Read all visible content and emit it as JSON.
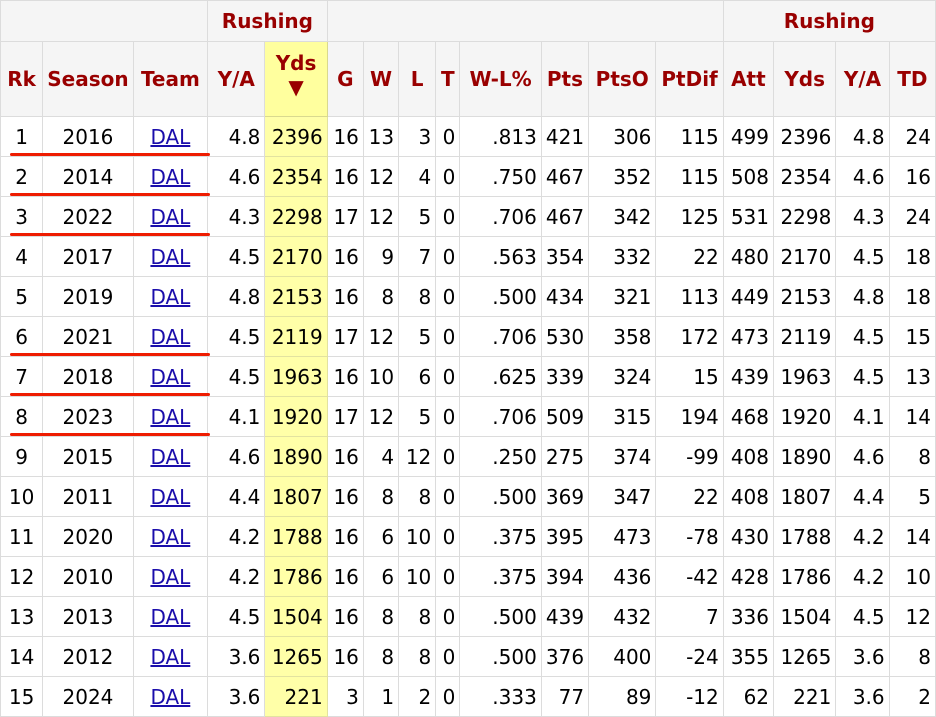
{
  "over_header": {
    "left": "Rushing",
    "right": "Rushing"
  },
  "headers": [
    "Rk",
    "Season",
    "Team",
    "Y/A",
    "Yds",
    "G",
    "W",
    "L",
    "T",
    "W-L%",
    "Pts",
    "PtsO",
    "PtDif",
    "Att",
    "Yds",
    "Y/A",
    "TD"
  ],
  "sort_arrow": "▼",
  "rows": [
    [
      "1",
      "2016",
      "DAL",
      "4.8",
      "2396",
      "16",
      "13",
      "3",
      "0",
      ".813",
      "421",
      "306",
      "115",
      "499",
      "2396",
      "4.8",
      "24"
    ],
    [
      "2",
      "2014",
      "DAL",
      "4.6",
      "2354",
      "16",
      "12",
      "4",
      "0",
      ".750",
      "467",
      "352",
      "115",
      "508",
      "2354",
      "4.6",
      "16"
    ],
    [
      "3",
      "2022",
      "DAL",
      "4.3",
      "2298",
      "17",
      "12",
      "5",
      "0",
      ".706",
      "467",
      "342",
      "125",
      "531",
      "2298",
      "4.3",
      "24"
    ],
    [
      "4",
      "2017",
      "DAL",
      "4.5",
      "2170",
      "16",
      "9",
      "7",
      "0",
      ".563",
      "354",
      "332",
      "22",
      "480",
      "2170",
      "4.5",
      "18"
    ],
    [
      "5",
      "2019",
      "DAL",
      "4.8",
      "2153",
      "16",
      "8",
      "8",
      "0",
      ".500",
      "434",
      "321",
      "113",
      "449",
      "2153",
      "4.8",
      "18"
    ],
    [
      "6",
      "2021",
      "DAL",
      "4.5",
      "2119",
      "17",
      "12",
      "5",
      "0",
      ".706",
      "530",
      "358",
      "172",
      "473",
      "2119",
      "4.5",
      "15"
    ],
    [
      "7",
      "2018",
      "DAL",
      "4.5",
      "1963",
      "16",
      "10",
      "6",
      "0",
      ".625",
      "339",
      "324",
      "15",
      "439",
      "1963",
      "4.5",
      "13"
    ],
    [
      "8",
      "2023",
      "DAL",
      "4.1",
      "1920",
      "17",
      "12",
      "5",
      "0",
      ".706",
      "509",
      "315",
      "194",
      "468",
      "1920",
      "4.1",
      "14"
    ],
    [
      "9",
      "2015",
      "DAL",
      "4.6",
      "1890",
      "16",
      "4",
      "12",
      "0",
      ".250",
      "275",
      "374",
      "-99",
      "408",
      "1890",
      "4.6",
      "8"
    ],
    [
      "10",
      "2011",
      "DAL",
      "4.4",
      "1807",
      "16",
      "8",
      "8",
      "0",
      ".500",
      "369",
      "347",
      "22",
      "408",
      "1807",
      "4.4",
      "5"
    ],
    [
      "11",
      "2020",
      "DAL",
      "4.2",
      "1788",
      "16",
      "6",
      "10",
      "0",
      ".375",
      "395",
      "473",
      "-78",
      "430",
      "1788",
      "4.2",
      "14"
    ],
    [
      "12",
      "2010",
      "DAL",
      "4.2",
      "1786",
      "16",
      "6",
      "10",
      "0",
      ".375",
      "394",
      "436",
      "-42",
      "428",
      "1786",
      "4.2",
      "10"
    ],
    [
      "13",
      "2013",
      "DAL",
      "4.5",
      "1504",
      "16",
      "8",
      "8",
      "0",
      ".500",
      "439",
      "432",
      "7",
      "336",
      "1504",
      "4.5",
      "12"
    ],
    [
      "14",
      "2012",
      "DAL",
      "3.6",
      "1265",
      "16",
      "8",
      "8",
      "0",
      ".500",
      "376",
      "400",
      "-24",
      "355",
      "1265",
      "3.6",
      "8"
    ],
    [
      "15",
      "2024",
      "DAL",
      "3.6",
      "221",
      "3",
      "1",
      "2",
      "0",
      ".333",
      "77",
      "89",
      "-12",
      "62",
      "221",
      "3.6",
      "2"
    ]
  ],
  "highlighted_rows": [
    1,
    2,
    3,
    6,
    7,
    8
  ],
  "colors": {
    "header_text": "#990000",
    "sorted_column_bg": "#ffffa8",
    "link": "#1a0dab",
    "annotation_line": "#ee1c00"
  }
}
